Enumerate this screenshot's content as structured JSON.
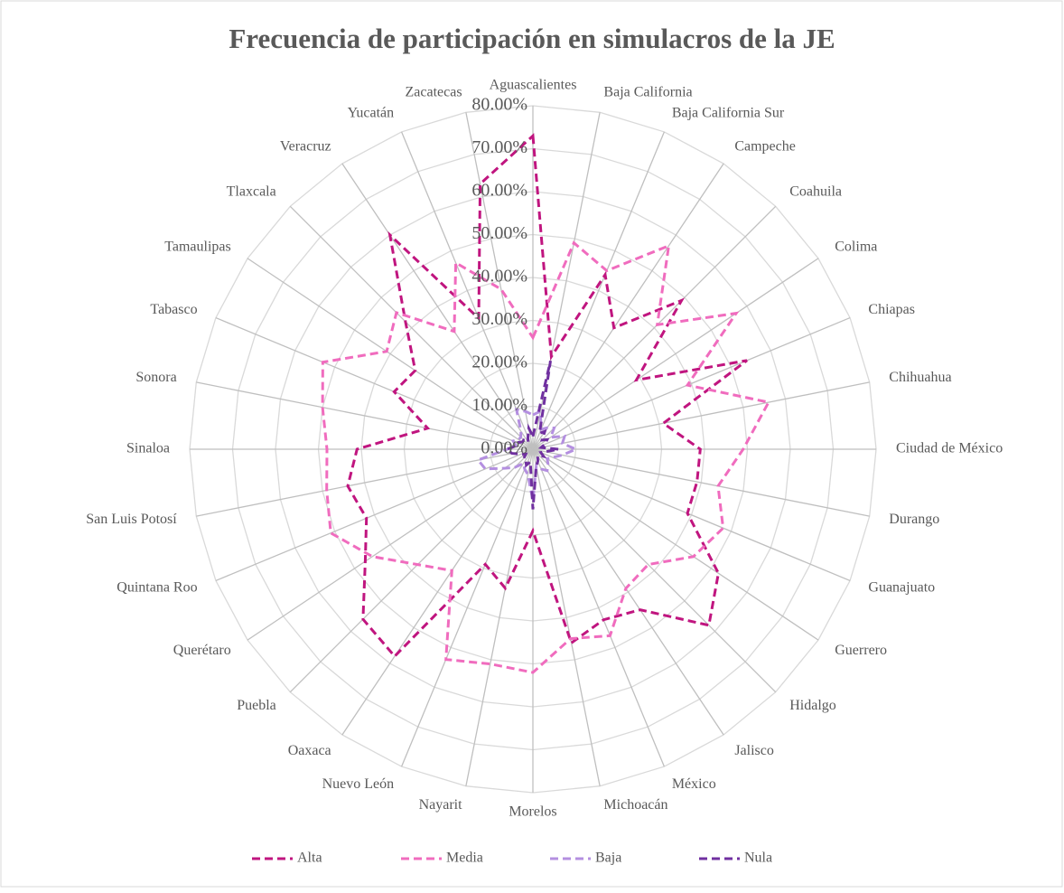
{
  "chart_data": {
    "type": "radar",
    "title": "Frecuencia de  participación en simulacros de la JE",
    "categories": [
      "Aguascalientes",
      "Baja California",
      "Baja California Sur",
      "Campeche",
      "Coahuila",
      "Colima",
      "Chiapas",
      "Chihuahua",
      "Ciudad de México",
      "Durango",
      "Guanajuato",
      "Guerrero",
      "Hidalgo",
      "Jalisco",
      "México",
      "Michoacán",
      "Morelos",
      "Nayarit",
      "Nuevo León",
      "Oaxaca",
      "Puebla",
      "Querétaro",
      "Quintana Roo",
      "San Luis Potosí",
      "Sinaloa",
      "Sonora",
      "Tabasco",
      "Tamaulipas",
      "Tlaxcala",
      "Veracruz",
      "Yucatán",
      "Zacatecas"
    ],
    "series": [
      {
        "name": "Alta",
        "color": "#c0157f",
        "values": [
          73,
          22,
          44,
          34,
          49,
          29,
          54,
          31,
          39,
          39,
          39,
          52,
          58,
          45,
          43,
          46,
          19,
          33,
          29,
          58,
          56,
          47,
          42,
          44,
          41,
          25,
          35,
          33,
          42,
          60,
          33,
          63
        ]
      },
      {
        "name": "Media",
        "color": "#f06cbe",
        "values": [
          26,
          49,
          45,
          57,
          41,
          57,
          39,
          56,
          49,
          44,
          48,
          45,
          38,
          39,
          47,
          45,
          52,
          51,
          53,
          34,
          38,
          45,
          51,
          49,
          48,
          50,
          53,
          41,
          45,
          33,
          47,
          38
        ]
      },
      {
        "name": "Baja",
        "color": "#b48fe0",
        "values": [
          8,
          9,
          5,
          6,
          7,
          5,
          8,
          7,
          10,
          7,
          5,
          4,
          5,
          6,
          5,
          4,
          12,
          6,
          5,
          4,
          6,
          8,
          12,
          13,
          6,
          4,
          5,
          4,
          4,
          5,
          10,
          9
        ]
      },
      {
        "name": "Nula",
        "color": "#7030a0",
        "values": [
          3,
          21,
          4,
          5,
          3,
          4,
          3,
          2,
          6,
          3,
          2,
          3,
          2,
          2,
          3,
          4,
          14,
          3,
          4,
          3,
          3,
          2,
          3,
          5,
          6,
          4,
          4,
          3,
          3,
          2,
          3,
          5
        ]
      }
    ],
    "rlim": [
      0,
      80
    ],
    "rticks": [
      {
        "value": 0,
        "label": "0.00%"
      },
      {
        "value": 10,
        "label": "10.00%"
      },
      {
        "value": 20,
        "label": "20.00%"
      },
      {
        "value": 30,
        "label": "30.00%"
      },
      {
        "value": 40,
        "label": "40.00%"
      },
      {
        "value": 50,
        "label": "50.00%"
      },
      {
        "value": 60,
        "label": "60.00%"
      },
      {
        "value": 70,
        "label": "70.00%"
      },
      {
        "value": 80,
        "label": "80.00%"
      }
    ],
    "grid": true,
    "legend": "bottom"
  }
}
